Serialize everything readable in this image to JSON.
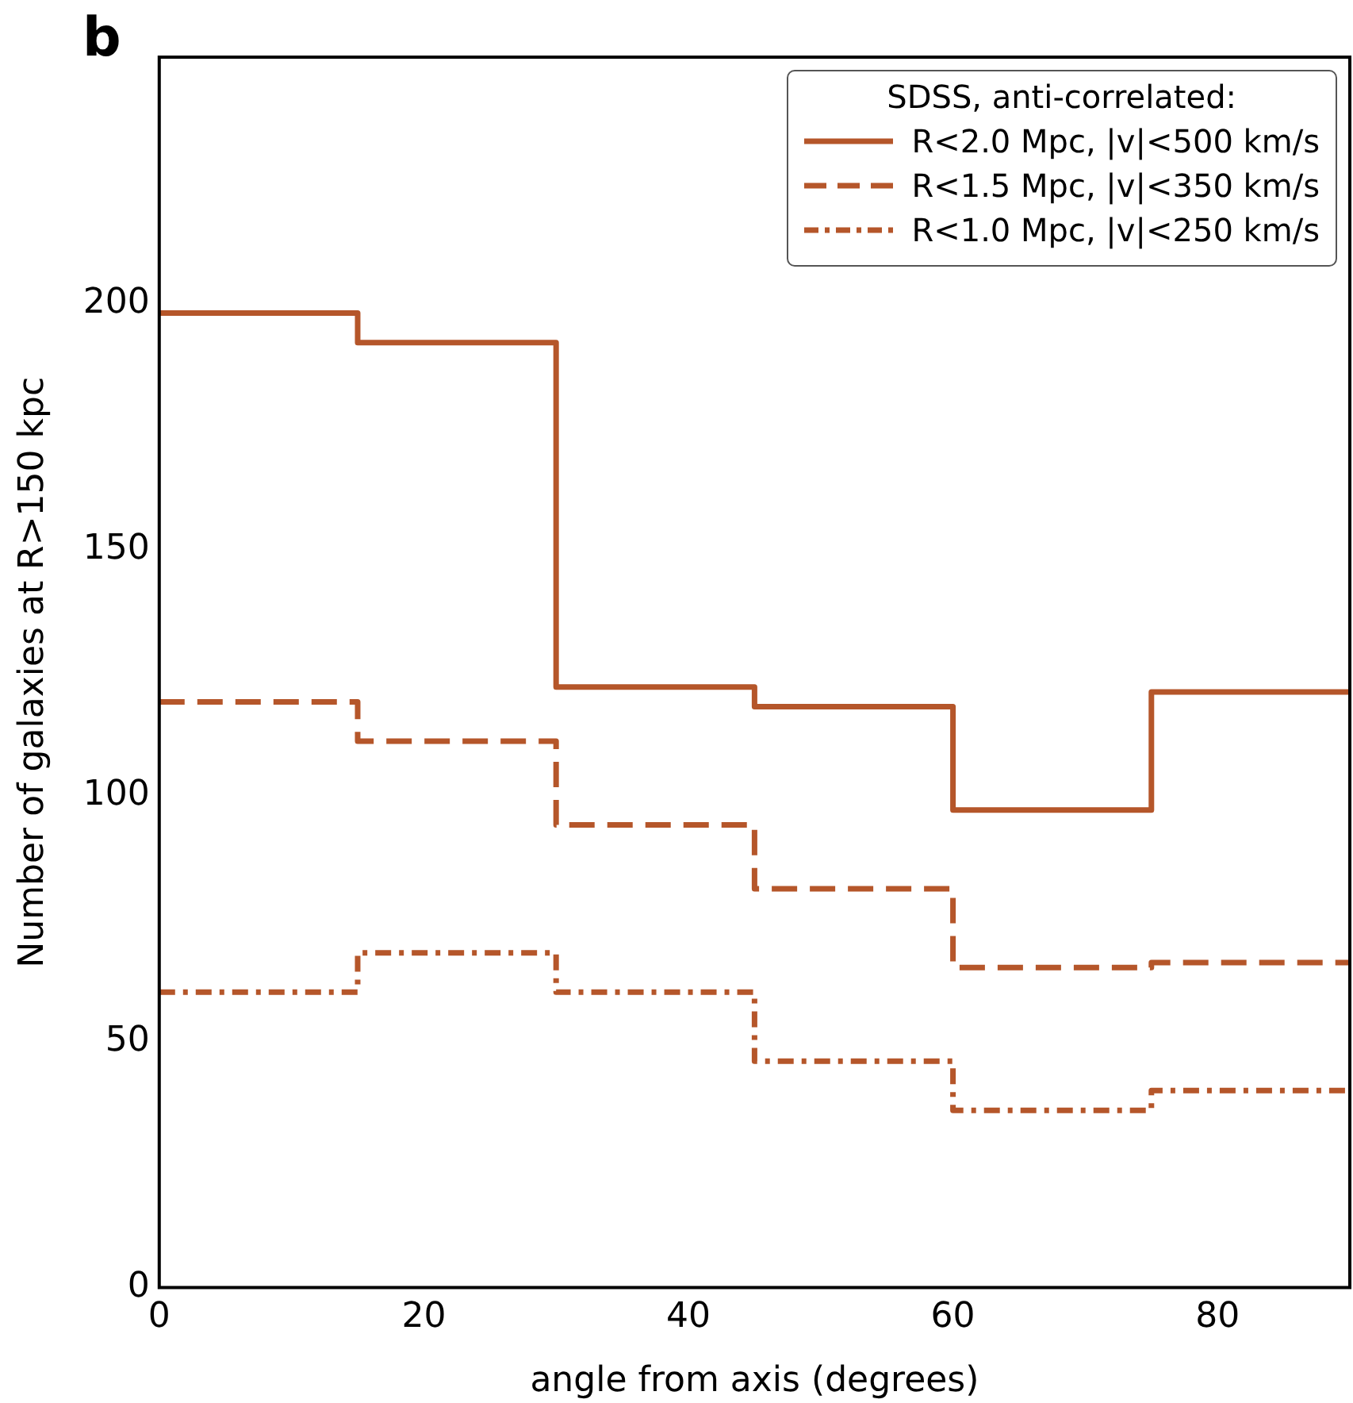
{
  "chart_data": {
    "type": "step",
    "title": "b",
    "xlabel": "angle from axis (degrees)",
    "ylabel": "Number of galaxies at R>150 kpc",
    "legend_title": "SDSS, anti-correlated:",
    "legend": "top right",
    "x": [
      0,
      15,
      30,
      45,
      60,
      75
    ],
    "series": [
      {
        "name": "R<2.0 Mpc, |v|<500 km/s",
        "color": "#b5562a",
        "line_style": "solid",
        "values": [
          198,
          192,
          122,
          118,
          97,
          121
        ]
      },
      {
        "name": "R<1.5 Mpc, |v|<350 km/s",
        "color": "#b5562a",
        "line_style": "dashed",
        "values": [
          119,
          111,
          94,
          81,
          65,
          66
        ]
      },
      {
        "name": "R<1.0 Mpc, |v|<250 km/s",
        "color": "#b5562a",
        "line_style": "dotted",
        "values": [
          60,
          68,
          60,
          46,
          36,
          40
        ]
      }
    ],
    "xlim": [
      0,
      90
    ],
    "xticks": [
      0,
      20,
      40,
      60,
      80
    ],
    "ylim": [
      0,
      250
    ],
    "yticks": [
      0,
      50,
      100,
      150,
      200
    ],
    "grid": false
  }
}
